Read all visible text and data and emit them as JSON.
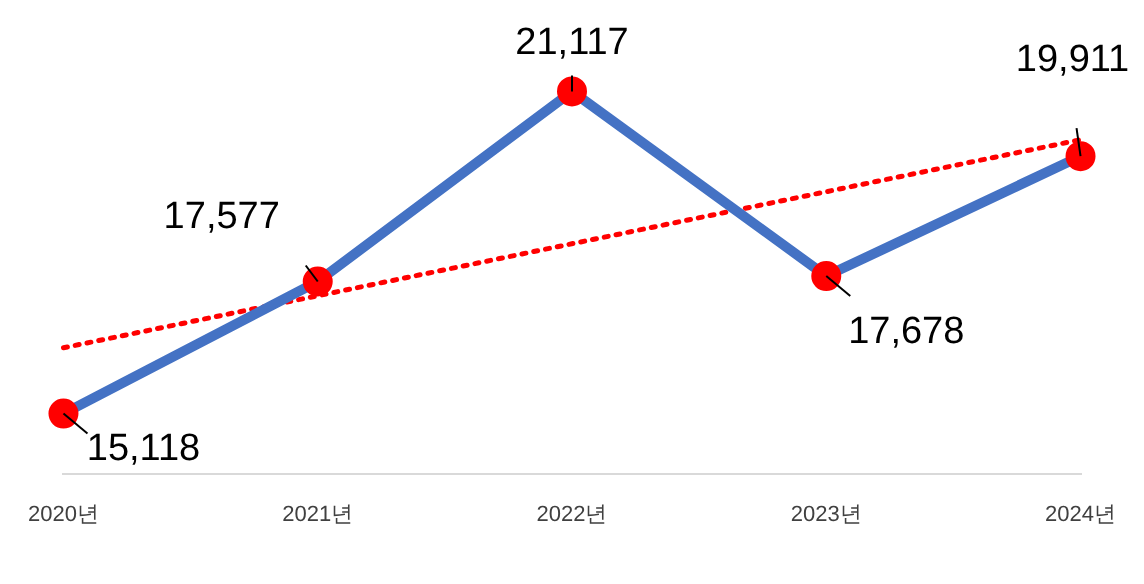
{
  "chart_data": {
    "type": "line",
    "categories": [
      "2020년",
      "2021년",
      "2022년",
      "2023년",
      "2024년"
    ],
    "series": [
      {
        "color": "#4472c4",
        "values": [
          15118,
          17577,
          21117,
          17678,
          19911
        ],
        "value_labels": [
          "15,118",
          "17,577",
          "21,117",
          "17,678",
          "19,911"
        ],
        "colors": [
          "#ff0000",
          "#ff0000",
          "#ff0000",
          "#ff0000",
          "#ff0000"
        ],
        "marker": "circle"
      },
      {
        "x": [
          "2020년",
          "2024년"
        ],
        "values": [
          16343,
          20218
        ],
        "color": "#ff0000",
        "line_style": "dotted",
        "marker": "none"
      }
    ],
    "legend": false,
    "grid": false
  }
}
